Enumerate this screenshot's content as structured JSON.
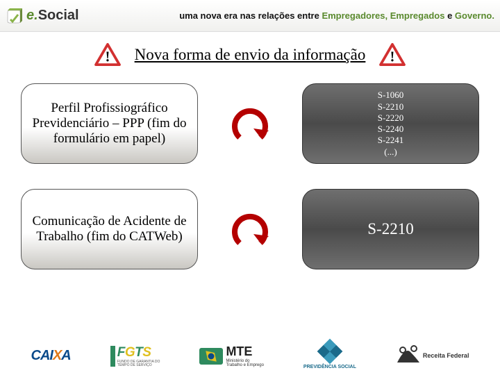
{
  "header": {
    "logo_e": "e.",
    "logo_social": "Social",
    "tagline_pre": "uma nova era nas relações entre ",
    "tagline_emp1": "Empregadores, ",
    "tagline_emp2": "Empregados",
    "tagline_mid": " e ",
    "tagline_gov": "Governo."
  },
  "title": "Nova forma de envio da informação",
  "rows": [
    {
      "left": "Perfil Profissiográfico Previdenciário – PPP (fim do formulário em papel)",
      "right": "S-1060\nS-2210\nS-2220\nS-2240\nS-2241\n(...)",
      "right_class": "codes",
      "arrow_color": "#b40000"
    },
    {
      "left": "Comunicação de Acidente de Trabalho (fim do CATWeb)",
      "right": "S-2210",
      "right_class": "big",
      "arrow_color": "#b40000"
    }
  ],
  "footer": {
    "caixa": "CAIXA",
    "fgts": "FGTS",
    "fgts_sub": "FUNDO DE GARANTIA DO\nTEMPO DE SERVIÇO",
    "mte": "MTE",
    "mte_sub1": "Ministério do",
    "mte_sub2": "Trabalho e Emprego",
    "inss": "PREVIDÊNCIA SOCIAL",
    "receita1": "Receita Federal"
  },
  "colors": {
    "green": "#5a8a2e",
    "warn_red": "#d23030",
    "warn_stroke": "#a01616"
  }
}
